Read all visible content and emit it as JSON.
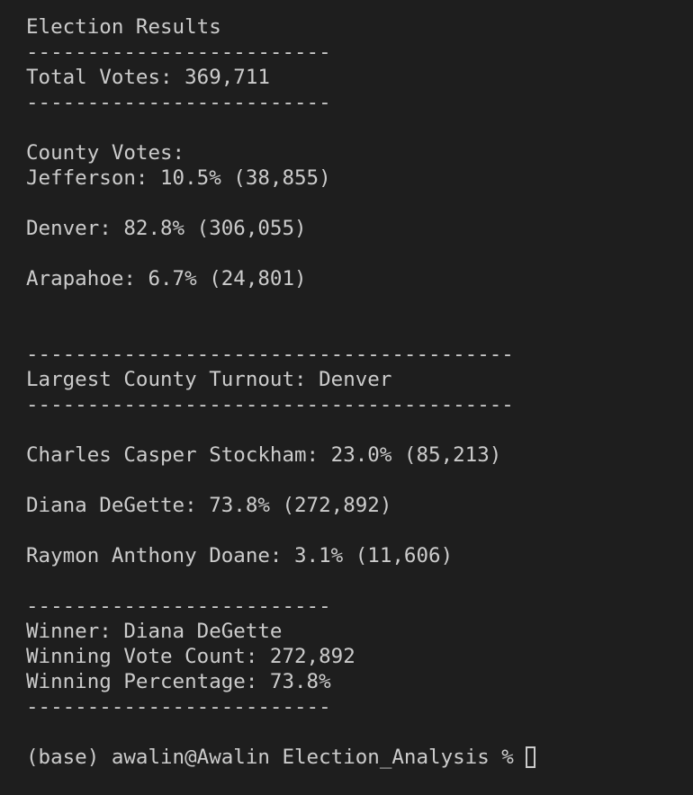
{
  "terminal": {
    "title": "Election Results",
    "sep_short": "-------------------------",
    "sep_long": "----------------------------------------",
    "total_votes": "Total Votes: 369,711",
    "county_header": "County Votes:",
    "counties": [
      "Jefferson: 10.5% (38,855)",
      "Denver: 82.8% (306,055)",
      "Arapahoe: 6.7% (24,801)"
    ],
    "largest_county": "Largest County Turnout: Denver",
    "candidates": [
      "Charles Casper Stockham: 23.0% (85,213)",
      "Diana DeGette: 73.8% (272,892)",
      "Raymon Anthony Doane: 3.1% (11,606)"
    ],
    "winner": "Winner: Diana DeGette",
    "winning_vote_count": "Winning Vote Count: 272,892",
    "winning_percentage": "Winning Percentage: 73.8%",
    "prompt": "(base) awalin@Awalin Election_Analysis %"
  }
}
